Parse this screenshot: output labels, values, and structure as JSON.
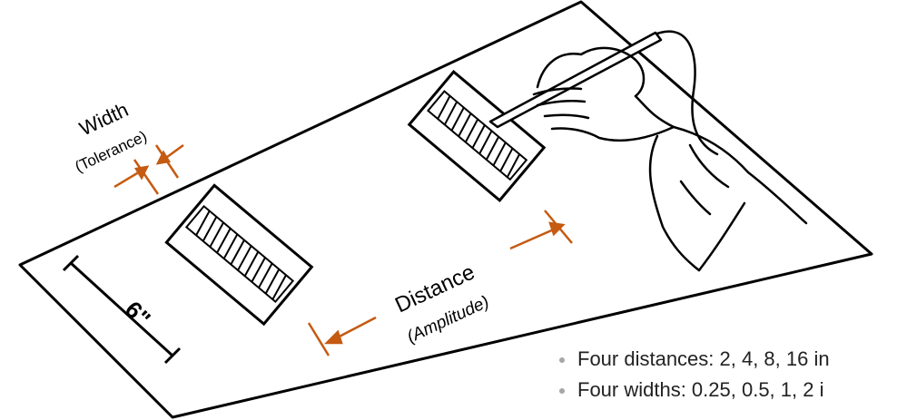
{
  "labels": {
    "width": "Width",
    "tolerance": "(Tolerance)",
    "distance": "Distance",
    "amplitude": "(Amplitude)",
    "dimension": "6\""
  },
  "bullets": [
    "Four distances:  2, 4, 8, 16 in",
    "Four widths:  0.25, 0.5, 1, 2 i"
  ],
  "colors": {
    "arrow": "#c55a11",
    "bullet": "#a6a6a6",
    "ink": "#000000"
  }
}
